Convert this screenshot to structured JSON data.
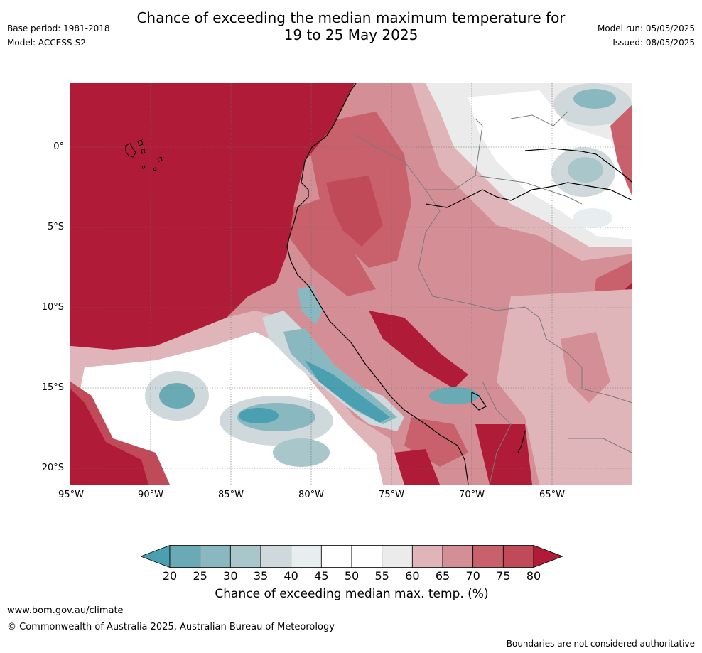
{
  "header": {
    "title_line1": "Chance of exceeding the median maximum temperature for",
    "title_line2": "19 to 25 May 2025",
    "base_period": "Base period: 1981-2018",
    "model": "Model: ACCESS-S2",
    "model_run": "Model run: 05/05/2025",
    "issued": "Issued: 08/05/2025"
  },
  "map": {
    "region": "Western South America (Ecuador, Peru, Bolivia)",
    "lat_labels": [
      "0°",
      "5°S",
      "10°S",
      "15°S",
      "20°S"
    ],
    "lon_labels": [
      "95°W",
      "90°W",
      "85°W",
      "80°W",
      "75°W",
      "70°W",
      "65°W"
    ],
    "colors": {
      "ocean_high": "#b01c37",
      "c75_80": "#c04a58",
      "c70_75": "#c8616b",
      "c65_70": "#d48f96",
      "c60_65": "#dfb5b9",
      "c55_60": "#ebebeb",
      "c45_55": "#ffffff",
      "c40_45": "#e8eef0",
      "c35_40": "#cfd9db",
      "c30_35": "#a9c6ca",
      "c25_30": "#8ab8c1",
      "c20_25": "#6aaab5",
      "c_lt20": "#4a9fb0"
    }
  },
  "colorbar": {
    "ticks": [
      "20",
      "25",
      "30",
      "35",
      "40",
      "45",
      "50",
      "55",
      "60",
      "65",
      "70",
      "75",
      "80"
    ],
    "colors": [
      "#6aaab5",
      "#8ab8c1",
      "#a9c6ca",
      "#cfd9db",
      "#e8eef0",
      "#ffffff",
      "#ffffff",
      "#ebebeb",
      "#dfb5b9",
      "#d48f96",
      "#c8616b",
      "#c04a58"
    ],
    "low_color": "#4a9fb0",
    "high_color": "#b01c37",
    "label": "Chance of exceeding median max. temp. (%)"
  },
  "footer": {
    "url": "www.bom.gov.au/climate",
    "copyright": "© Commonwealth of Australia 2025, Australian Bureau of Meteorology",
    "disclaimer": "Boundaries are not considered authoritative"
  }
}
